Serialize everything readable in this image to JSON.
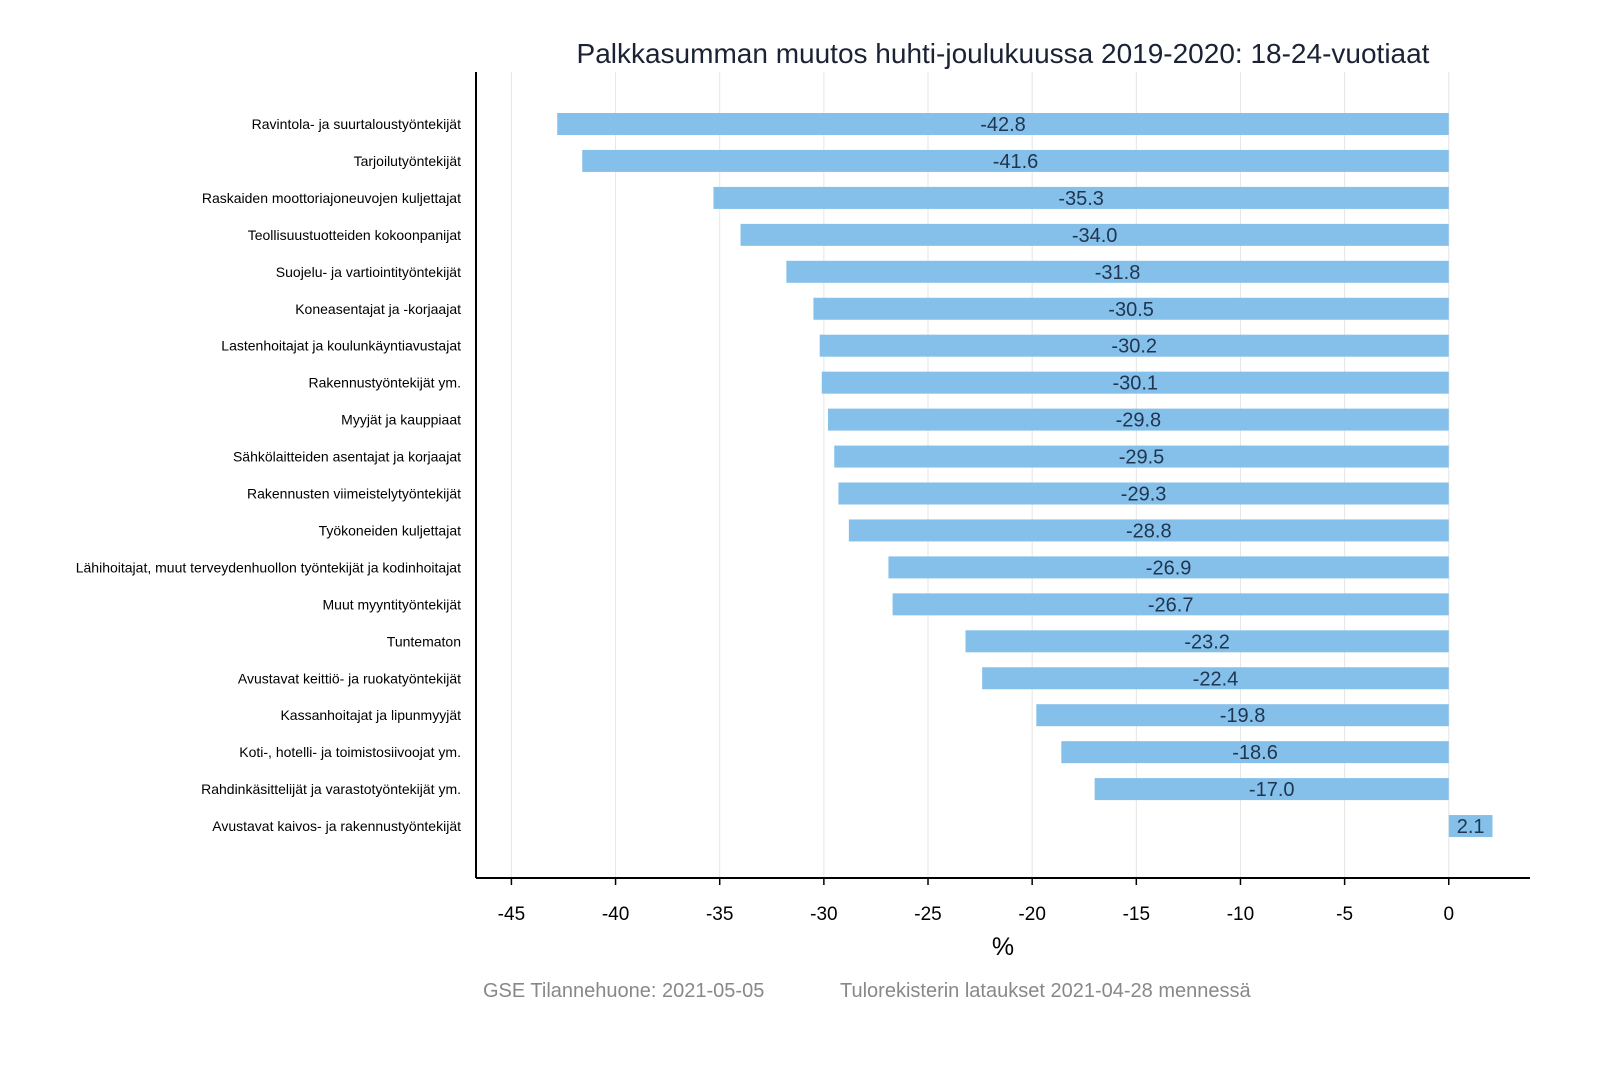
{
  "chart_data": {
    "type": "bar",
    "orientation": "horizontal",
    "title": "Palkkasumman muutos huhti-joulukuussa 2019-2020: 18-24-vuotiaat",
    "xlabel": "%",
    "ylabel": "",
    "xlim": [
      -46.7,
      3.9
    ],
    "xticks": [
      -45,
      -40,
      -35,
      -30,
      -25,
      -20,
      -15,
      -10,
      -5,
      0
    ],
    "grid": true,
    "bar_color": "#85c0ea",
    "categories": [
      "Ravintola- ja suurtaloustyöntekijät",
      "Tarjoilutyöntekijät",
      "Raskaiden moottoriajoneuvojen kuljettajat",
      "Teollisuustuotteiden kokoonpanijat",
      "Suojelu- ja vartiointityöntekijät",
      "Koneasentajat ja -korjaajat",
      "Lastenhoitajat ja koulunkäyntiavustajat",
      "Rakennustyöntekijät ym.",
      "Myyjät ja kauppiaat",
      "Sähkölaitteiden asentajat ja korjaajat",
      "Rakennusten viimeistelytyöntekijät",
      "Työkoneiden kuljettajat",
      "Lähihoitajat, muut terveydenhuollon työntekijät ja kodinhoitajat",
      "Muut myyntityöntekijät",
      "Tuntematon",
      "Avustavat keittiö- ja ruokatyöntekijät",
      "Kassanhoitajat ja lipunmyyjät",
      "Koti-, hotelli- ja toimistosiivoojat ym.",
      "Rahdinkäsittelijät ja varastotyöntekijät ym.",
      "Avustavat kaivos- ja rakennustyöntekijät"
    ],
    "values": [
      -42.8,
      -41.6,
      -35.3,
      -34.0,
      -31.8,
      -30.5,
      -30.2,
      -30.1,
      -29.8,
      -29.5,
      -29.3,
      -28.8,
      -26.9,
      -26.7,
      -23.2,
      -22.4,
      -19.8,
      -18.6,
      -17.0,
      2.1
    ],
    "data_labels": [
      "-42.8",
      "-41.6",
      "-35.3",
      "-34.0",
      "-31.8",
      "-30.5",
      "-30.2",
      "-30.1",
      "-29.8",
      "-29.5",
      "-29.3",
      "-28.8",
      "-26.9",
      "-26.7",
      "-23.2",
      "-22.4",
      "-19.8",
      "-18.6",
      "-17.0",
      "2.1"
    ]
  },
  "footer": {
    "source": "GSE Tilannehuone: 2021-05-05",
    "note": "Tulorekisterin lataukset 2021-04-28 mennessä"
  }
}
